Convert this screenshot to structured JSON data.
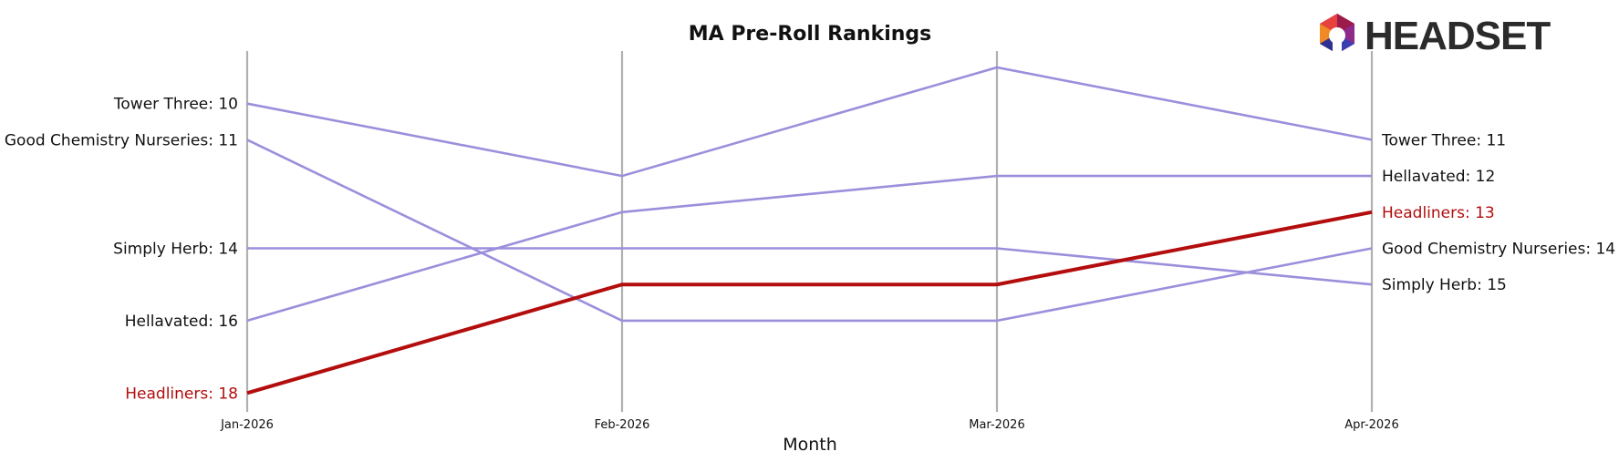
{
  "chart_data": {
    "type": "line",
    "title": "MA Pre-Roll Rankings",
    "xlabel": "Month",
    "ylabel": "",
    "x": [
      "Jan-2026",
      "Feb-2026",
      "Mar-2026",
      "Apr-2026"
    ],
    "y_inverted": true,
    "ylim": [
      19,
      9
    ],
    "grid": false,
    "series": [
      {
        "name": "Tower Three",
        "values": [
          10,
          12,
          9,
          11
        ],
        "color": "#9b8fdc",
        "highlight": false
      },
      {
        "name": "Good Chemistry Nurseries",
        "values": [
          11,
          16,
          16,
          14
        ],
        "color": "#9b8fdc",
        "highlight": false
      },
      {
        "name": "Simply Herb",
        "values": [
          14,
          14,
          14,
          15
        ],
        "color": "#9b8fdc",
        "highlight": false
      },
      {
        "name": "Hellavated",
        "values": [
          16,
          13,
          12,
          12
        ],
        "color": "#9b8fdc",
        "highlight": false
      },
      {
        "name": "Headliners",
        "values": [
          18,
          15,
          15,
          13
        ],
        "color": "#b30d0d",
        "highlight": true
      }
    ],
    "left_labels": [
      "Tower Three: 10",
      "Good Chemistry Nurseries: 11",
      "Simply Herb: 14",
      "Hellavated: 16",
      "Headliners: 18"
    ],
    "right_labels": [
      "Tower Three: 11",
      "Hellavated: 12",
      "Headliners: 13",
      "Good Chemistry Nurseries: 14",
      "Simply Herb: 15"
    ]
  },
  "logo": {
    "text": "HEADSET"
  },
  "colors": {
    "muted_line": "#9b8fdc",
    "highlight": "#b30d0d",
    "axis_line": "#b0b0b0",
    "logo_text": "#2b2b2b"
  }
}
